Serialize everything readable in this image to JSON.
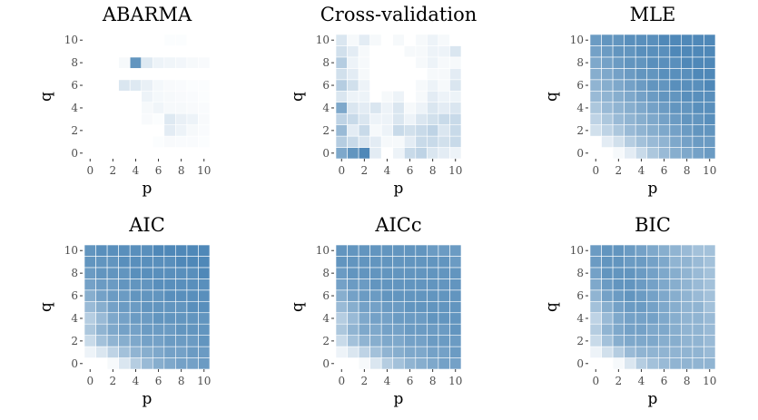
{
  "chart_data": [
    {
      "type": "heatmap",
      "title": "ABARMA",
      "xlabel": "p",
      "ylabel": "q",
      "x": [
        0,
        1,
        2,
        3,
        4,
        5,
        6,
        7,
        8,
        9,
        10
      ],
      "y": [
        0,
        1,
        2,
        3,
        4,
        5,
        6,
        7,
        8,
        9,
        10
      ],
      "xticks": [
        "0",
        "2",
        "4",
        "6",
        "8",
        "10"
      ],
      "yticks": [
        "0",
        "2",
        "4",
        "6",
        "8",
        "10"
      ],
      "value_range": [
        0,
        1
      ],
      "z": [
        [
          0,
          0,
          0,
          0,
          0,
          0,
          0,
          0,
          0,
          0,
          0
        ],
        [
          0,
          0,
          0,
          0,
          0,
          0,
          0.02,
          0.04,
          0.03,
          0.03,
          0.02
        ],
        [
          0,
          0,
          0,
          0,
          0,
          0,
          0,
          0.15,
          0.1,
          0.05,
          0.03
        ],
        [
          0,
          0,
          0,
          0,
          0,
          0.04,
          0.02,
          0.18,
          0.12,
          0.1,
          0.04
        ],
        [
          0,
          0,
          0,
          0,
          0,
          0.05,
          0.08,
          0.05,
          0.05,
          0.04,
          0.03
        ],
        [
          0,
          0,
          0,
          0,
          0,
          0.1,
          0.06,
          0.05,
          0.04,
          0.03,
          0.02
        ],
        [
          0,
          0,
          0,
          0.2,
          0.18,
          0.12,
          0.06,
          0.04,
          0.03,
          0.02,
          0.02
        ],
        [
          0,
          0,
          0,
          0,
          0,
          0,
          0,
          0,
          0,
          0,
          0
        ],
        [
          0,
          0,
          0,
          0.05,
          0.85,
          0.18,
          0.1,
          0.08,
          0.07,
          0.05,
          0.04
        ],
        [
          0,
          0,
          0,
          0,
          0,
          0,
          0,
          0,
          0,
          0,
          0
        ],
        [
          0,
          0,
          0,
          0,
          0,
          0,
          0,
          0.02,
          0.02,
          0,
          0
        ]
      ]
    },
    {
      "type": "heatmap",
      "title": "Cross-validation",
      "xlabel": "p",
      "ylabel": "q",
      "x": [
        0,
        1,
        2,
        3,
        4,
        5,
        6,
        7,
        8,
        9,
        10
      ],
      "y": [
        0,
        1,
        2,
        3,
        4,
        5,
        6,
        7,
        8,
        9,
        10
      ],
      "xticks": [
        "0",
        "2",
        "4",
        "6",
        "8",
        "10"
      ],
      "yticks": [
        "0",
        "2",
        "4",
        "6",
        "8",
        "10"
      ],
      "value_range": [
        0,
        1
      ],
      "z": [
        [
          0.7,
          0.85,
          0.95,
          0.15,
          0,
          0.1,
          0.3,
          0.35,
          0.2,
          0.15,
          0.1
        ],
        [
          0.4,
          0.3,
          0.2,
          0.15,
          0.05,
          0.05,
          0.15,
          0.3,
          0.3,
          0.25,
          0.3
        ],
        [
          0.55,
          0.15,
          0.3,
          0.05,
          0.1,
          0.3,
          0.25,
          0.3,
          0.35,
          0.2,
          0.3
        ],
        [
          0.35,
          0.3,
          0.2,
          0.1,
          0.1,
          0.2,
          0.1,
          0.2,
          0.25,
          0.3,
          0.3
        ],
        [
          0.7,
          0.2,
          0.15,
          0.2,
          0.1,
          0.2,
          0.05,
          0.1,
          0.2,
          0.15,
          0.2
        ],
        [
          0.2,
          0.1,
          0.1,
          0,
          0.05,
          0.1,
          0,
          0.05,
          0.15,
          0.1,
          0.1
        ],
        [
          0.4,
          0.25,
          0.1,
          0,
          0,
          0,
          0,
          0.05,
          0.1,
          0.05,
          0.2
        ],
        [
          0.25,
          0.15,
          0.05,
          0,
          0,
          0,
          0,
          0,
          0.05,
          0.05,
          0.15
        ],
        [
          0.4,
          0.1,
          0.05,
          0,
          0,
          0,
          0,
          0.05,
          0.1,
          0.05,
          0.05
        ],
        [
          0.25,
          0.15,
          0.05,
          0,
          0,
          0,
          0.05,
          0.05,
          0.1,
          0.1,
          0.2
        ],
        [
          0.2,
          0.05,
          0.15,
          0.05,
          0,
          0.05,
          0,
          0.05,
          0.1,
          0.05,
          0
        ]
      ]
    },
    {
      "type": "heatmap",
      "title": "MLE",
      "xlabel": "p",
      "ylabel": "q",
      "x": [
        0,
        1,
        2,
        3,
        4,
        5,
        6,
        7,
        8,
        9,
        10
      ],
      "y": [
        0,
        1,
        2,
        3,
        4,
        5,
        6,
        7,
        8,
        9,
        10
      ],
      "xticks": [
        "0",
        "2",
        "4",
        "6",
        "8",
        "10"
      ],
      "yticks": [
        "0",
        "2",
        "4",
        "6",
        "8",
        "10"
      ],
      "value_range": [
        0,
        1
      ],
      "z": [
        [
          0,
          0,
          0.05,
          0.15,
          0.3,
          0.45,
          0.55,
          0.65,
          0.7,
          0.75,
          0.8
        ],
        [
          0,
          0.15,
          0.25,
          0.4,
          0.5,
          0.55,
          0.6,
          0.7,
          0.75,
          0.8,
          0.8
        ],
        [
          0.25,
          0.35,
          0.45,
          0.55,
          0.6,
          0.65,
          0.7,
          0.75,
          0.8,
          0.85,
          0.85
        ],
        [
          0.35,
          0.45,
          0.55,
          0.6,
          0.65,
          0.7,
          0.75,
          0.8,
          0.85,
          0.85,
          0.9
        ],
        [
          0.45,
          0.55,
          0.6,
          0.65,
          0.7,
          0.75,
          0.8,
          0.85,
          0.85,
          0.9,
          0.9
        ],
        [
          0.55,
          0.6,
          0.65,
          0.7,
          0.75,
          0.8,
          0.85,
          0.85,
          0.9,
          0.9,
          0.9
        ],
        [
          0.6,
          0.65,
          0.7,
          0.75,
          0.8,
          0.85,
          0.85,
          0.9,
          0.9,
          0.9,
          0.95
        ],
        [
          0.65,
          0.7,
          0.75,
          0.8,
          0.85,
          0.85,
          0.9,
          0.9,
          0.9,
          0.95,
          0.95
        ],
        [
          0.7,
          0.75,
          0.8,
          0.85,
          0.85,
          0.9,
          0.9,
          0.9,
          0.95,
          0.95,
          0.95
        ],
        [
          0.75,
          0.8,
          0.85,
          0.85,
          0.9,
          0.9,
          0.9,
          0.95,
          0.95,
          0.95,
          0.95
        ],
        [
          0.8,
          0.85,
          0.85,
          0.9,
          0.9,
          0.9,
          0.95,
          0.95,
          0.95,
          0.95,
          0.95
        ]
      ]
    },
    {
      "type": "heatmap",
      "title": "AIC",
      "xlabel": "p",
      "ylabel": "q",
      "x": [
        0,
        1,
        2,
        3,
        4,
        5,
        6,
        7,
        8,
        9,
        10
      ],
      "y": [
        0,
        1,
        2,
        3,
        4,
        5,
        6,
        7,
        8,
        9,
        10
      ],
      "xticks": [
        "0",
        "2",
        "4",
        "6",
        "8",
        "10"
      ],
      "yticks": [
        "0",
        "2",
        "4",
        "6",
        "8",
        "10"
      ],
      "value_range": [
        0,
        1
      ],
      "z": [
        [
          0,
          0,
          0.05,
          0.2,
          0.4,
          0.55,
          0.65,
          0.7,
          0.75,
          0.75,
          0.8
        ],
        [
          0.1,
          0.2,
          0.35,
          0.5,
          0.6,
          0.65,
          0.7,
          0.75,
          0.75,
          0.8,
          0.8
        ],
        [
          0.3,
          0.5,
          0.6,
          0.65,
          0.7,
          0.75,
          0.75,
          0.8,
          0.8,
          0.8,
          0.85
        ],
        [
          0.45,
          0.6,
          0.7,
          0.75,
          0.75,
          0.8,
          0.8,
          0.8,
          0.85,
          0.85,
          0.85
        ],
        [
          0.4,
          0.55,
          0.7,
          0.75,
          0.8,
          0.8,
          0.85,
          0.85,
          0.85,
          0.85,
          0.85
        ],
        [
          0.55,
          0.65,
          0.75,
          0.8,
          0.8,
          0.85,
          0.85,
          0.85,
          0.85,
          0.9,
          0.9
        ],
        [
          0.65,
          0.75,
          0.8,
          0.8,
          0.85,
          0.85,
          0.85,
          0.9,
          0.9,
          0.9,
          0.9
        ],
        [
          0.75,
          0.8,
          0.8,
          0.85,
          0.85,
          0.85,
          0.9,
          0.9,
          0.9,
          0.9,
          0.9
        ],
        [
          0.8,
          0.85,
          0.85,
          0.85,
          0.9,
          0.9,
          0.9,
          0.9,
          0.9,
          0.9,
          0.95
        ],
        [
          0.85,
          0.85,
          0.85,
          0.9,
          0.9,
          0.9,
          0.9,
          0.9,
          0.95,
          0.95,
          0.95
        ],
        [
          0.85,
          0.9,
          0.9,
          0.9,
          0.9,
          0.9,
          0.95,
          0.95,
          0.95,
          0.95,
          0.95
        ]
      ]
    },
    {
      "type": "heatmap",
      "title": "AICc",
      "xlabel": "p",
      "ylabel": "q",
      "x": [
        0,
        1,
        2,
        3,
        4,
        5,
        6,
        7,
        8,
        9,
        10
      ],
      "y": [
        0,
        1,
        2,
        3,
        4,
        5,
        6,
        7,
        8,
        9,
        10
      ],
      "xticks": [
        "0",
        "2",
        "4",
        "6",
        "8",
        "10"
      ],
      "yticks": [
        "0",
        "2",
        "4",
        "6",
        "8",
        "10"
      ],
      "value_range": [
        0,
        1
      ],
      "z": [
        [
          0,
          0,
          0.05,
          0.2,
          0.4,
          0.5,
          0.6,
          0.65,
          0.7,
          0.75,
          0.75
        ],
        [
          0.1,
          0.2,
          0.35,
          0.5,
          0.6,
          0.65,
          0.7,
          0.7,
          0.75,
          0.75,
          0.8
        ],
        [
          0.3,
          0.5,
          0.6,
          0.65,
          0.7,
          0.7,
          0.75,
          0.75,
          0.8,
          0.8,
          0.8
        ],
        [
          0.45,
          0.6,
          0.7,
          0.7,
          0.75,
          0.75,
          0.8,
          0.8,
          0.8,
          0.8,
          0.85
        ],
        [
          0.4,
          0.55,
          0.7,
          0.75,
          0.75,
          0.8,
          0.8,
          0.8,
          0.85,
          0.85,
          0.85
        ],
        [
          0.55,
          0.65,
          0.75,
          0.75,
          0.8,
          0.8,
          0.85,
          0.85,
          0.85,
          0.85,
          0.85
        ],
        [
          0.65,
          0.75,
          0.8,
          0.8,
          0.85,
          0.85,
          0.85,
          0.85,
          0.85,
          0.85,
          0.85
        ],
        [
          0.75,
          0.8,
          0.8,
          0.85,
          0.85,
          0.85,
          0.85,
          0.85,
          0.85,
          0.85,
          0.85
        ],
        [
          0.8,
          0.85,
          0.85,
          0.85,
          0.85,
          0.85,
          0.85,
          0.85,
          0.85,
          0.85,
          0.85
        ],
        [
          0.85,
          0.85,
          0.85,
          0.85,
          0.85,
          0.85,
          0.85,
          0.85,
          0.85,
          0.85,
          0.8
        ],
        [
          0.85,
          0.85,
          0.85,
          0.85,
          0.85,
          0.85,
          0.85,
          0.85,
          0.8,
          0.8,
          0.8
        ]
      ]
    },
    {
      "type": "heatmap",
      "title": "BIC",
      "xlabel": "p",
      "ylabel": "q",
      "x": [
        0,
        1,
        2,
        3,
        4,
        5,
        6,
        7,
        8,
        9,
        10
      ],
      "y": [
        0,
        1,
        2,
        3,
        4,
        5,
        6,
        7,
        8,
        9,
        10
      ],
      "xticks": [
        "0",
        "2",
        "4",
        "6",
        "8",
        "10"
      ],
      "yticks": [
        "0",
        "2",
        "4",
        "6",
        "8",
        "10"
      ],
      "value_range": [
        0,
        1
      ],
      "z": [
        [
          0,
          0,
          0.05,
          0.2,
          0.4,
          0.5,
          0.55,
          0.6,
          0.6,
          0.6,
          0.6
        ],
        [
          0.1,
          0.25,
          0.4,
          0.55,
          0.6,
          0.6,
          0.6,
          0.6,
          0.6,
          0.6,
          0.55
        ],
        [
          0.3,
          0.5,
          0.65,
          0.7,
          0.7,
          0.7,
          0.65,
          0.65,
          0.6,
          0.6,
          0.55
        ],
        [
          0.4,
          0.6,
          0.7,
          0.75,
          0.75,
          0.7,
          0.7,
          0.65,
          0.6,
          0.6,
          0.55
        ],
        [
          0.35,
          0.55,
          0.7,
          0.75,
          0.75,
          0.75,
          0.7,
          0.65,
          0.6,
          0.6,
          0.55
        ],
        [
          0.5,
          0.65,
          0.75,
          0.8,
          0.8,
          0.75,
          0.7,
          0.65,
          0.6,
          0.6,
          0.5
        ],
        [
          0.6,
          0.75,
          0.8,
          0.85,
          0.8,
          0.75,
          0.7,
          0.65,
          0.6,
          0.55,
          0.5
        ],
        [
          0.7,
          0.8,
          0.85,
          0.85,
          0.8,
          0.75,
          0.7,
          0.65,
          0.6,
          0.55,
          0.5
        ],
        [
          0.75,
          0.85,
          0.85,
          0.85,
          0.8,
          0.75,
          0.7,
          0.65,
          0.6,
          0.55,
          0.5
        ],
        [
          0.8,
          0.85,
          0.85,
          0.8,
          0.8,
          0.75,
          0.7,
          0.6,
          0.6,
          0.55,
          0.5
        ],
        [
          0.8,
          0.85,
          0.85,
          0.8,
          0.75,
          0.7,
          0.65,
          0.6,
          0.55,
          0.5,
          0.5
        ]
      ]
    }
  ],
  "colors": {
    "low": "#ffffff",
    "high": "#4682b4",
    "grid": "#ffffff"
  }
}
